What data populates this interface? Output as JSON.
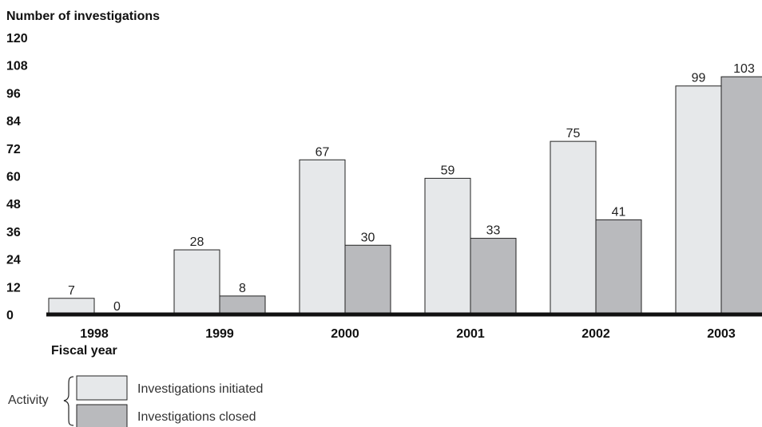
{
  "chart_data": {
    "type": "bar",
    "ylabel": "Number of investigations",
    "xlabel": "Fiscal year",
    "categories": [
      "1998",
      "1999",
      "2000",
      "2001",
      "2002",
      "2003"
    ],
    "series": [
      {
        "name": "Investigations initiated",
        "values": [
          7,
          28,
          67,
          59,
          75,
          99
        ],
        "color": "#e6e8ea"
      },
      {
        "name": "Investigations closed",
        "values": [
          0,
          8,
          30,
          33,
          41,
          103
        ],
        "color": "#b9babd"
      }
    ],
    "ylim": [
      0,
      120
    ],
    "yticks": [
      "0",
      "12",
      "24",
      "36",
      "48",
      "60",
      "72",
      "84",
      "96",
      "108",
      "120"
    ],
    "grid": false,
    "legend": {
      "title": "Activity",
      "placement": "bottom-left"
    }
  }
}
